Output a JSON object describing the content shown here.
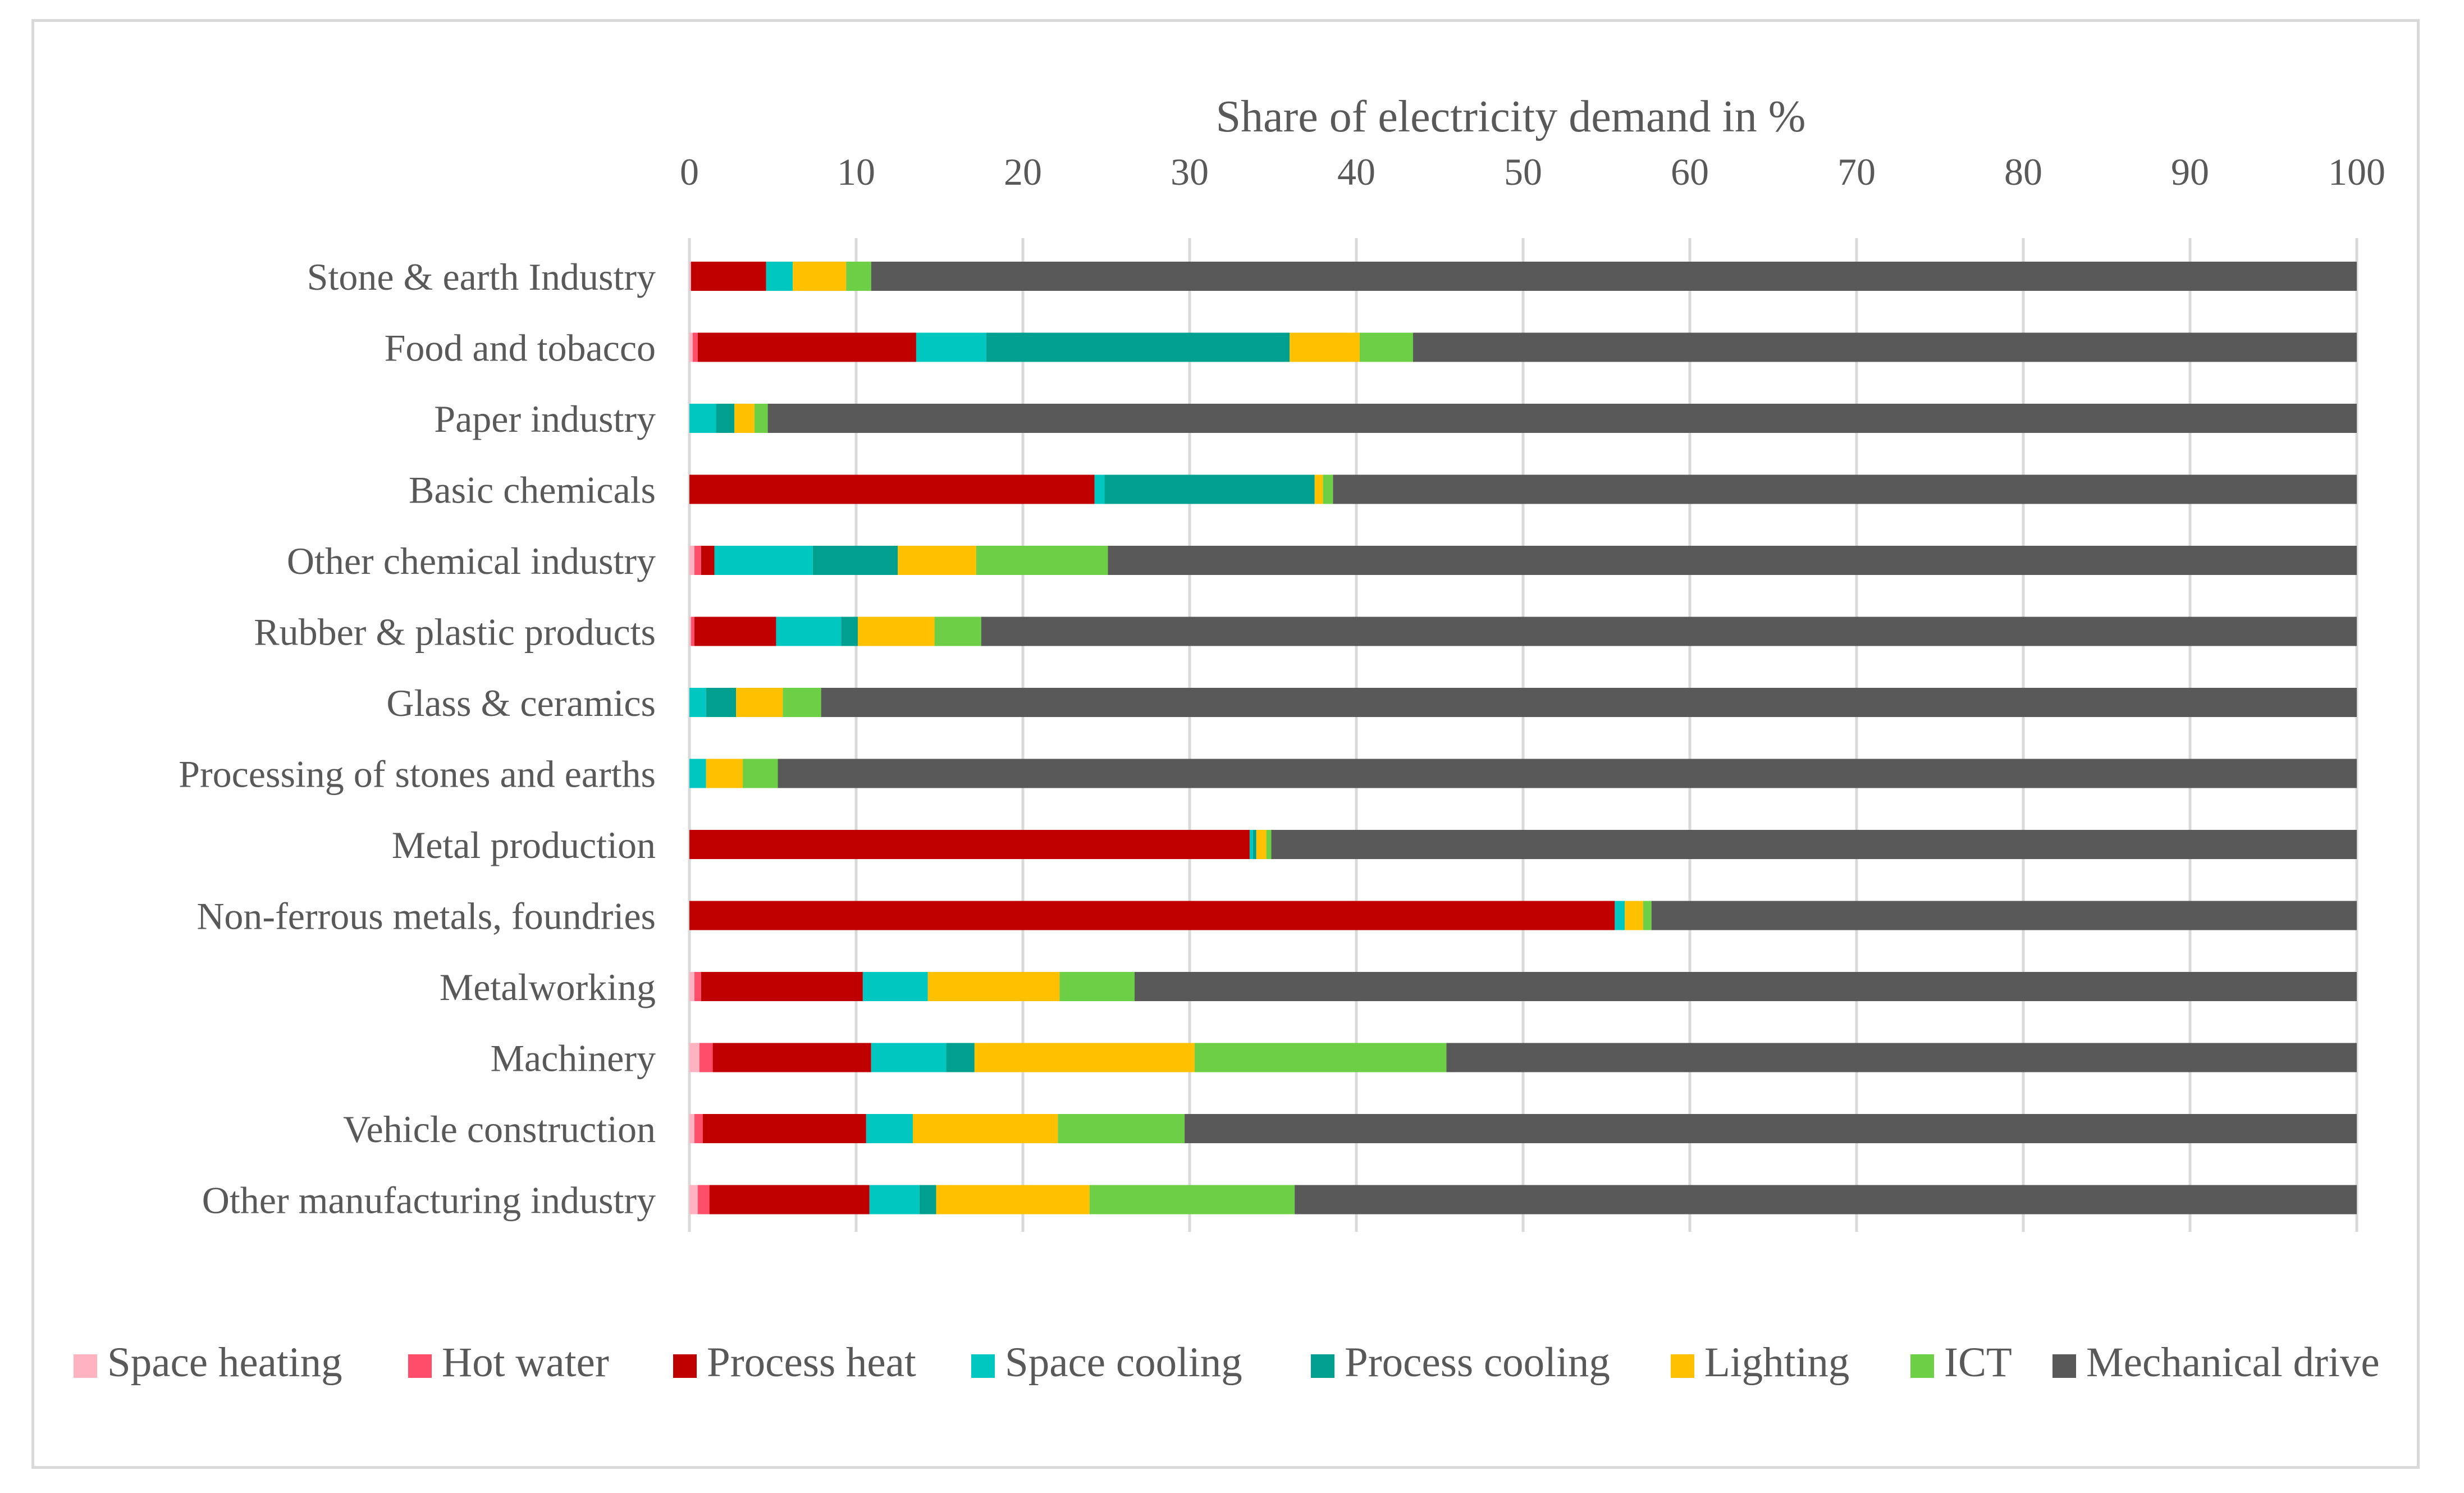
{
  "chart_data": {
    "type": "bar",
    "orientation": "horizontal",
    "stacked": true,
    "title": "",
    "xlabel": "Share of electricity demand in %",
    "ylabel": "",
    "xlim": [
      0,
      100
    ],
    "x_ticks": [
      "0",
      "10",
      "20",
      "30",
      "40",
      "50",
      "60",
      "70",
      "80",
      "90",
      "100"
    ],
    "grid": true,
    "legend_position": "bottom",
    "categories": [
      "Stone & earth Industry",
      "Food and tobacco",
      "Paper industry",
      "Basic chemicals",
      "Other chemical industry",
      "Rubber & plastic products",
      "Glass & ceramics",
      "Processing of stones and earths",
      "Metal production",
      "Non-ferrous metals, foundries",
      "Metalworking",
      "Machinery",
      "Vehicle construction",
      "Other manufacturing industry"
    ],
    "series": [
      {
        "name": "Space heating",
        "color": "#ffb3c1",
        "values": [
          0.1,
          0.2,
          0.0,
          0.0,
          0.3,
          0.1,
          0.0,
          0.0,
          0.0,
          0.0,
          0.3,
          0.6,
          0.3,
          0.5
        ]
      },
      {
        "name": "Hot water",
        "color": "#ff4d6a",
        "values": [
          0.0,
          0.3,
          0.0,
          0.0,
          0.4,
          0.2,
          0.0,
          0.0,
          0.0,
          0.0,
          0.4,
          0.8,
          0.5,
          0.7
        ]
      },
      {
        "name": "Process heat",
        "color": "#c00000",
        "values": [
          4.5,
          13.1,
          0.0,
          24.3,
          0.8,
          4.9,
          0.0,
          0.0,
          33.6,
          55.5,
          9.7,
          9.5,
          9.8,
          9.6
        ]
      },
      {
        "name": "Space cooling",
        "color": "#00c8c0",
        "values": [
          1.6,
          4.2,
          1.6,
          0.6,
          5.9,
          3.9,
          1.0,
          1.0,
          0.2,
          0.6,
          3.9,
          4.5,
          2.8,
          3.0
        ]
      },
      {
        "name": "Process cooling",
        "color": "#00a090",
        "values": [
          0.0,
          18.2,
          1.1,
          12.6,
          5.1,
          1.0,
          1.8,
          0.0,
          0.2,
          0.0,
          0.0,
          1.7,
          0.0,
          1.0
        ]
      },
      {
        "name": "Lighting",
        "color": "#ffc000",
        "values": [
          3.2,
          4.2,
          1.2,
          0.5,
          4.7,
          4.6,
          2.8,
          2.2,
          0.6,
          1.1,
          7.9,
          13.2,
          8.7,
          9.2
        ]
      },
      {
        "name": "ICT",
        "color": "#6ccf45",
        "values": [
          1.5,
          3.2,
          0.8,
          0.6,
          7.9,
          2.8,
          2.3,
          2.1,
          0.3,
          0.5,
          4.5,
          15.1,
          7.6,
          12.3
        ]
      },
      {
        "name": "Mechanical drive",
        "color": "#595959",
        "values": [
          89.1,
          56.6,
          95.3,
          61.4,
          74.9,
          82.5,
          92.1,
          94.7,
          65.1,
          42.3,
          73.3,
          54.6,
          70.3,
          63.7
        ]
      }
    ]
  }
}
